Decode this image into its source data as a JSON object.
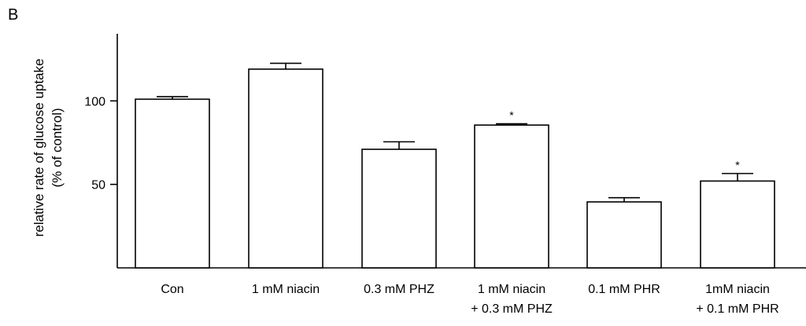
{
  "panel_label": "B",
  "chart_data": {
    "type": "bar",
    "title": "",
    "xlabel": "",
    "ylabel_lines": [
      "relative rate of glucose uptake",
      "(% of control)"
    ],
    "ylim": [
      0,
      135
    ],
    "yticks": [
      50,
      100
    ],
    "categories": [
      [
        "Con"
      ],
      [
        "1 mM niacin"
      ],
      [
        "0.3 mM PHZ"
      ],
      [
        "1 mM niacin",
        "+ 0.3 mM PHZ"
      ],
      [
        "0.1 mM PHR"
      ],
      [
        "1mM niacin",
        "+ 0.1 mM PHR"
      ]
    ],
    "values": [
      101,
      119,
      71,
      85.5,
      39.5,
      52
    ],
    "errors": [
      1.5,
      3.5,
      4.5,
      0.8,
      2.5,
      4.5
    ],
    "annotations": [
      "",
      "",
      "",
      "*",
      "",
      "*"
    ],
    "grid": false,
    "legend": "none"
  }
}
